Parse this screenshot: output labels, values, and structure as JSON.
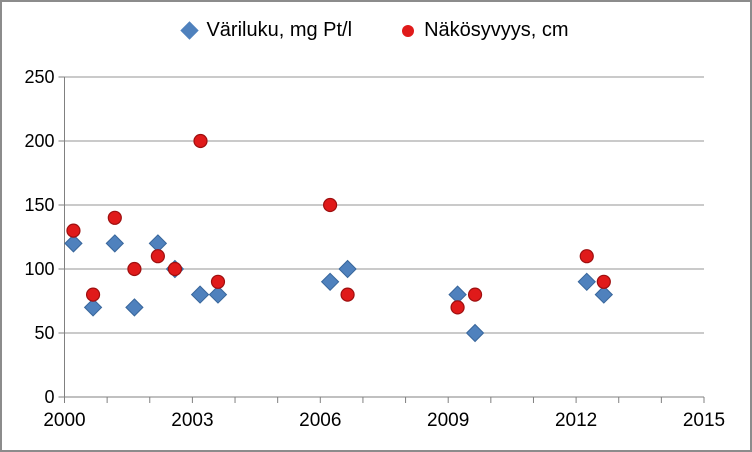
{
  "chart_data": {
    "type": "scatter",
    "title": "",
    "xlabel": "",
    "ylabel": "",
    "xlim": [
      2000,
      2015
    ],
    "ylim": [
      0,
      250
    ],
    "x_tick_labels": [
      2000,
      2003,
      2006,
      2009,
      2012,
      2015
    ],
    "x_minor_tick_step": 1,
    "y_tick_labels": [
      0,
      50,
      100,
      150,
      200,
      250
    ],
    "grid": "horizontal",
    "legend_position": "top-center",
    "colors": {
      "series1_fill": "#4f81bd",
      "series1_stroke": "#38669b",
      "series2_fill": "#e01a1a",
      "series2_stroke": "#9e0f0f",
      "gridline": "#969696",
      "axis": "#808080",
      "frame_border": "#8c8c8c",
      "text": "#000000"
    },
    "series": [
      {
        "name": "Väriluku, mg Pt/l",
        "marker": "diamond",
        "points": [
          {
            "x": 2000.21,
            "y": 120
          },
          {
            "x": 2000.67,
            "y": 70
          },
          {
            "x": 2001.18,
            "y": 120
          },
          {
            "x": 2001.64,
            "y": 70
          },
          {
            "x": 2002.19,
            "y": 120
          },
          {
            "x": 2002.59,
            "y": 100
          },
          {
            "x": 2003.18,
            "y": 80
          },
          {
            "x": 2003.6,
            "y": 80
          },
          {
            "x": 2006.23,
            "y": 90
          },
          {
            "x": 2006.64,
            "y": 100
          },
          {
            "x": 2009.22,
            "y": 80
          },
          {
            "x": 2009.63,
            "y": 50
          },
          {
            "x": 2012.25,
            "y": 90
          },
          {
            "x": 2012.65,
            "y": 80
          }
        ]
      },
      {
        "name": "Näkösyvyys, cm",
        "marker": "circle",
        "points": [
          {
            "x": 2000.21,
            "y": 130
          },
          {
            "x": 2000.67,
            "y": 80
          },
          {
            "x": 2001.18,
            "y": 140
          },
          {
            "x": 2001.64,
            "y": 100
          },
          {
            "x": 2002.19,
            "y": 110
          },
          {
            "x": 2002.59,
            "y": 100
          },
          {
            "x": 2003.19,
            "y": 200
          },
          {
            "x": 2003.6,
            "y": 90
          },
          {
            "x": 2006.23,
            "y": 150
          },
          {
            "x": 2006.64,
            "y": 80
          },
          {
            "x": 2009.22,
            "y": 70
          },
          {
            "x": 2009.63,
            "y": 80
          },
          {
            "x": 2012.25,
            "y": 110
          },
          {
            "x": 2012.65,
            "y": 90
          }
        ]
      }
    ]
  }
}
